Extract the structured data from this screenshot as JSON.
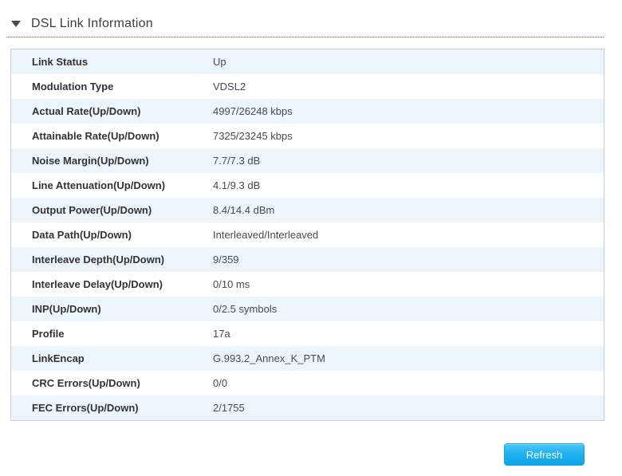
{
  "header": {
    "title": "DSL Link Information"
  },
  "table": {
    "rows": [
      {
        "label": "Link Status",
        "value": "Up"
      },
      {
        "label": "Modulation Type",
        "value": "VDSL2"
      },
      {
        "label": "Actual Rate(Up/Down)",
        "value": "4997/26248 kbps"
      },
      {
        "label": "Attainable Rate(Up/Down)",
        "value": "7325/23245 kbps"
      },
      {
        "label": "Noise Margin(Up/Down)",
        "value": "7.7/7.3 dB"
      },
      {
        "label": "Line Attenuation(Up/Down)",
        "value": "4.1/9.3 dB"
      },
      {
        "label": "Output Power(Up/Down)",
        "value": "8.4/14.4 dBm"
      },
      {
        "label": "Data Path(Up/Down)",
        "value": "Interleaved/Interleaved"
      },
      {
        "label": "Interleave Depth(Up/Down)",
        "value": "9/359"
      },
      {
        "label": "Interleave Delay(Up/Down)",
        "value": "0/10 ms"
      },
      {
        "label": "INP(Up/Down)",
        "value": "0/2.5 symbols"
      },
      {
        "label": "Profile",
        "value": "17a"
      },
      {
        "label": "LinkEncap",
        "value": "G.993.2_Annex_K_PTM"
      },
      {
        "label": "CRC Errors(Up/Down)",
        "value": "0/0"
      },
      {
        "label": "FEC Errors(Up/Down)",
        "value": "2/1755"
      }
    ]
  },
  "actions": {
    "refresh_label": "Refresh"
  },
  "colors": {
    "row_alt_background": "#edf5fc",
    "table_border": "#cccccc",
    "button_blue": "#1db0f0",
    "label_text": "#333333",
    "value_text": "#4a4a4a"
  },
  "icons": {
    "collapse_arrow": "triangle-down"
  }
}
